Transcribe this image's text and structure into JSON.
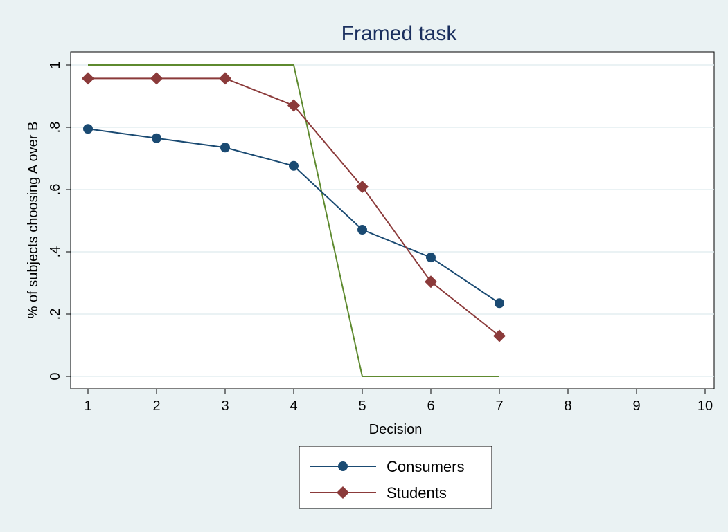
{
  "chart_data": {
    "type": "line",
    "title": "Framed task",
    "xlabel": "Decision",
    "ylabel": "% of subjects choosing A over B",
    "xlim": [
      1,
      10
    ],
    "ylim": [
      0,
      1
    ],
    "x_ticks": [
      1,
      2,
      3,
      4,
      5,
      6,
      7,
      8,
      9,
      10
    ],
    "y_ticks": [
      {
        "value": 0,
        "label": "0"
      },
      {
        "value": 0.2,
        "label": ".2"
      },
      {
        "value": 0.4,
        "label": ".4"
      },
      {
        "value": 0.6,
        "label": ".6"
      },
      {
        "value": 0.8,
        "label": ".8"
      },
      {
        "value": 1,
        "label": "1"
      }
    ],
    "grid": true,
    "legend_position": "bottom",
    "series": [
      {
        "name": "Consumers",
        "marker": "circle",
        "color": "#1a4a72",
        "show_in_legend": true,
        "x": [
          1,
          2,
          3,
          4,
          5,
          6,
          7
        ],
        "y": [
          0.795,
          0.765,
          0.735,
          0.676,
          0.471,
          0.382,
          0.235
        ]
      },
      {
        "name": "Students",
        "marker": "diamond",
        "color": "#8b3a3a",
        "show_in_legend": true,
        "x": [
          1,
          2,
          3,
          4,
          5,
          6,
          7
        ],
        "y": [
          0.957,
          0.957,
          0.957,
          0.87,
          0.609,
          0.304,
          0.13
        ]
      },
      {
        "marker": "none",
        "color": "#5e8a2f",
        "show_in_legend": false,
        "x": [
          1,
          2,
          3,
          4,
          5,
          6,
          7
        ],
        "y": [
          1,
          1,
          1,
          1,
          0,
          0,
          0
        ]
      }
    ]
  }
}
